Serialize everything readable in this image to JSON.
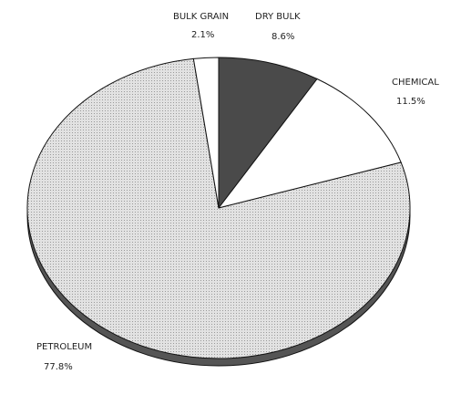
{
  "chart_data": {
    "type": "pie",
    "categories": [
      "DRY BULK",
      "CHEMICAL",
      "PETROLEUM",
      "BULK GRAIN"
    ],
    "values": [
      8.6,
      11.5,
      77.8,
      2.1
    ],
    "value_labels": [
      "8.6%",
      "11.5%",
      "77.8%",
      "2.1%"
    ],
    "colors": [
      "#4a4a4a",
      "#ffffff",
      "#d9d9d9",
      "#ffffff"
    ]
  }
}
